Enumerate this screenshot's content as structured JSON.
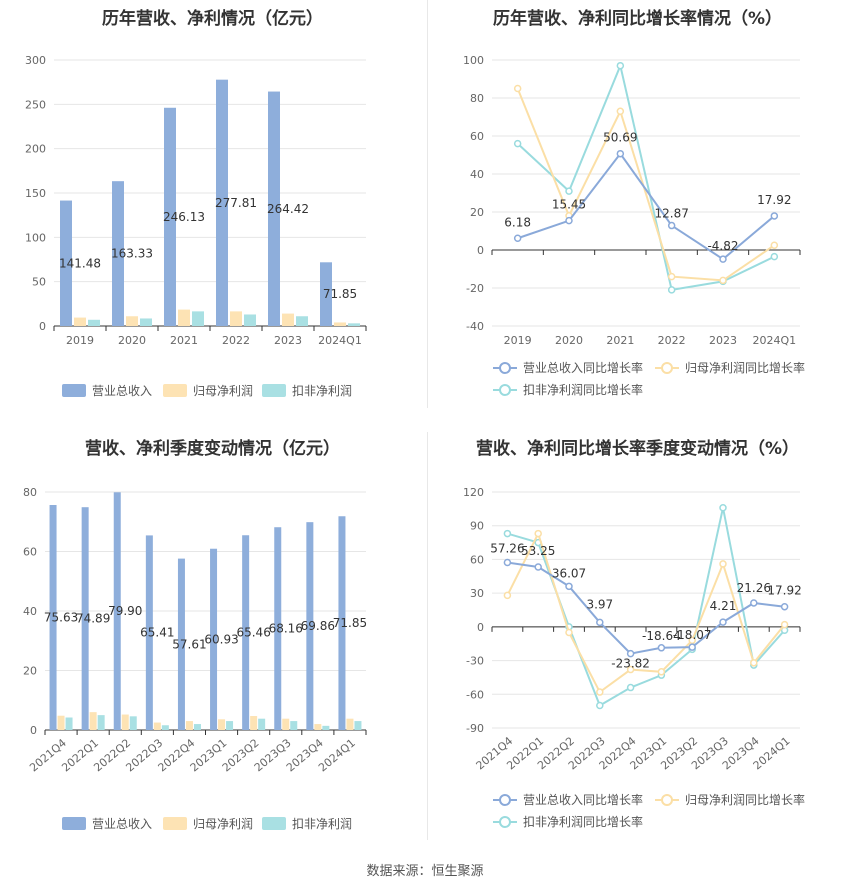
{
  "colors": {
    "revenue": "#8eaedb",
    "parent_profit": "#fde3b4",
    "deducted_profit": "#a9e0e3",
    "revenue_line": "#8aa9d9",
    "parent_line": "#fbdfa6",
    "deducted_line": "#99dbde"
  },
  "source": "数据来源：恒生聚源",
  "chart_data": [
    {
      "type": "bar",
      "title": "历年营收、净利情况（亿元）",
      "categories": [
        "2019",
        "2020",
        "2021",
        "2022",
        "2023",
        "2024Q1"
      ],
      "ylim": [
        0,
        300
      ],
      "yticks": [
        0,
        50,
        100,
        150,
        200,
        250,
        300
      ],
      "grid": true,
      "legend": "bottom",
      "series": [
        {
          "name": "营业总收入",
          "values": [
            141.48,
            163.33,
            246.13,
            277.81,
            264.42,
            71.85
          ],
          "labels": [
            "141.48",
            "163.33",
            "246.13",
            "277.81",
            "264.42",
            "71.85"
          ]
        },
        {
          "name": "归母净利润",
          "values": [
            9.5,
            11.0,
            18.5,
            16.5,
            14.0,
            4.0
          ]
        },
        {
          "name": "扣非净利润",
          "values": [
            7.0,
            8.5,
            16.5,
            13.0,
            11.0,
            3.0
          ]
        }
      ]
    },
    {
      "type": "line",
      "title": "历年营收、净利同比增长率情况（%）",
      "categories": [
        "2019",
        "2020",
        "2021",
        "2022",
        "2023",
        "2024Q1"
      ],
      "ylim": [
        -40,
        100
      ],
      "yticks": [
        -40,
        -20,
        0,
        20,
        40,
        60,
        80,
        100
      ],
      "grid": true,
      "legend": "bottom",
      "series": [
        {
          "name": "营业总收入同比增长率",
          "values": [
            6.18,
            15.45,
            50.69,
            12.87,
            -4.82,
            17.92
          ],
          "labels": [
            "6.18",
            "15.45",
            "50.69",
            "12.87",
            "-4.82",
            "17.92"
          ]
        },
        {
          "name": "归母净利润同比增长率",
          "values": [
            85,
            18,
            73,
            -14,
            -16,
            2.5
          ]
        },
        {
          "name": "扣非净利润同比增长率",
          "values": [
            56,
            31,
            97,
            -21,
            -16.5,
            -3.5
          ]
        }
      ]
    },
    {
      "type": "bar",
      "title": "营收、净利季度变动情况（亿元）",
      "categories": [
        "2021Q4",
        "2022Q1",
        "2022Q2",
        "2022Q3",
        "2022Q4",
        "2023Q1",
        "2023Q2",
        "2023Q3",
        "2023Q4",
        "2024Q1"
      ],
      "ylim": [
        0,
        80
      ],
      "yticks": [
        0,
        20,
        40,
        60,
        80
      ],
      "grid": true,
      "legend": "bottom",
      "series": [
        {
          "name": "营业总收入",
          "values": [
            75.63,
            74.89,
            79.9,
            65.41,
            57.61,
            60.93,
            65.46,
            68.16,
            69.86,
            71.85
          ],
          "labels": [
            "75.63",
            "74.89",
            "79.90",
            "65.41",
            "57.61",
            "60.93",
            "65.46",
            "68.16",
            "69.86",
            "71.85"
          ]
        },
        {
          "name": "归母净利润",
          "values": [
            4.8,
            6.0,
            5.2,
            2.5,
            3.0,
            3.6,
            4.7,
            3.8,
            2.0,
            3.8
          ]
        },
        {
          "name": "扣非净利润",
          "values": [
            4.2,
            5.0,
            4.6,
            1.6,
            2.0,
            3.0,
            3.8,
            3.0,
            1.4,
            3.0
          ]
        }
      ]
    },
    {
      "type": "line",
      "title": "营收、净利同比增长率季度变动情况（%）",
      "categories": [
        "2021Q4",
        "2022Q1",
        "2022Q2",
        "2022Q3",
        "2022Q4",
        "2023Q1",
        "2023Q2",
        "2023Q3",
        "2023Q4",
        "2024Q1"
      ],
      "ylim": [
        -90,
        120
      ],
      "yticks": [
        -90,
        -60,
        -30,
        0,
        30,
        60,
        90,
        120
      ],
      "grid": true,
      "legend": "bottom",
      "series": [
        {
          "name": "营业总收入同比增长率",
          "values": [
            57.26,
            53.25,
            36.07,
            3.97,
            -23.82,
            -18.64,
            -18.07,
            4.21,
            21.26,
            17.92
          ],
          "labels": [
            "57.26",
            "53.25",
            "36.07",
            "3.97",
            "-23.82",
            "-18.64",
            "-18.07",
            "4.21",
            "21.26",
            "17.92"
          ]
        },
        {
          "name": "归母净利润同比增长率",
          "values": [
            28,
            83,
            -5,
            -58,
            -38,
            -40,
            -12,
            56,
            -32,
            2
          ]
        },
        {
          "name": "扣非净利润同比增长率",
          "values": [
            83,
            75,
            0,
            -70,
            -54,
            -43,
            -20,
            106,
            -34,
            -3
          ]
        }
      ]
    }
  ]
}
